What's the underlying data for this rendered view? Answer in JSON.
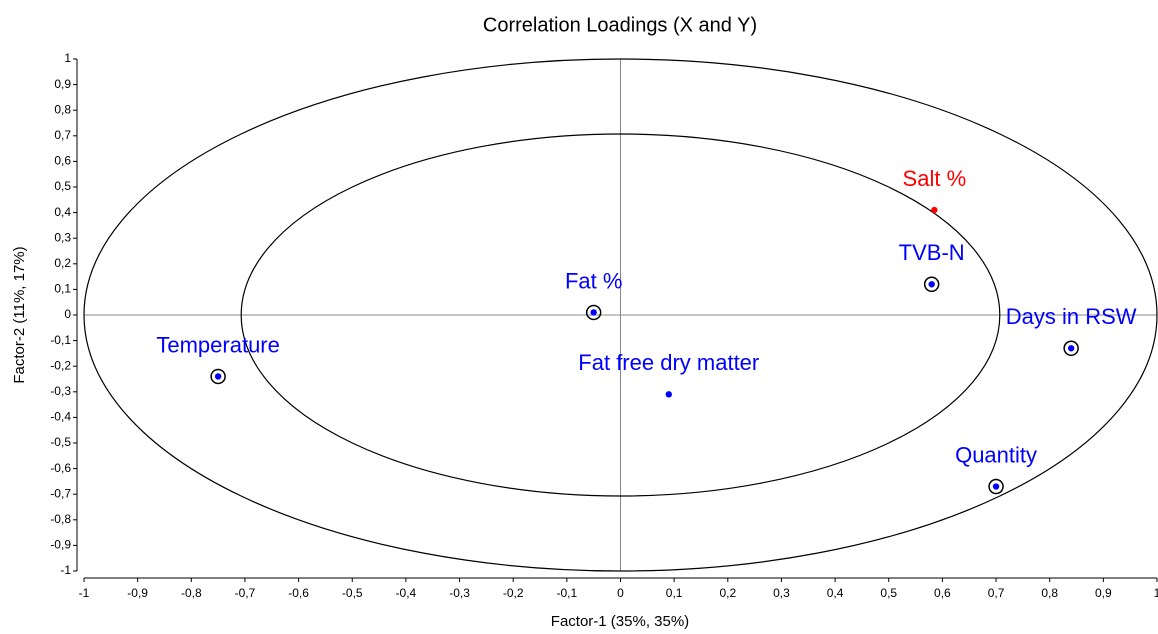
{
  "chart_data": {
    "type": "scatter",
    "title": "Correlation Loadings (X and Y)",
    "x_label": "Factor-1 (35%, 35%)",
    "y_label": "Factor-2 (11%, 17%)",
    "xlim": [
      -1,
      1
    ],
    "ylim": [
      -1,
      1
    ],
    "xticks": [
      -1,
      {
        "value": -0.9,
        "label": "-0,9"
      },
      {
        "value": -0.8,
        "label": "-0,8"
      },
      {
        "value": -0.7,
        "label": "-0,7"
      },
      {
        "value": -0.6,
        "label": "-0,6"
      },
      {
        "value": -0.5,
        "label": "-0,5"
      },
      {
        "value": -0.4,
        "label": "-0,4"
      },
      {
        "value": -0.3,
        "label": "-0,3"
      },
      {
        "value": -0.2,
        "label": "-0,2"
      },
      {
        "value": -0.1,
        "label": "-0,1"
      },
      0,
      {
        "value": 0.1,
        "label": "0,1"
      },
      {
        "value": 0.2,
        "label": "0,2"
      },
      {
        "value": 0.3,
        "label": "0,3"
      },
      {
        "value": 0.4,
        "label": "0,4"
      },
      {
        "value": 0.5,
        "label": "0,5"
      },
      {
        "value": 0.6,
        "label": "0,6"
      },
      {
        "value": 0.7,
        "label": "0,7"
      },
      {
        "value": 0.8,
        "label": "0,8"
      },
      {
        "value": 0.9,
        "label": "0,9"
      },
      1
    ],
    "yticks": [
      -1,
      {
        "value": -0.9,
        "label": "-0,9"
      },
      {
        "value": -0.8,
        "label": "-0,8"
      },
      {
        "value": -0.7,
        "label": "-0,7"
      },
      {
        "value": -0.6,
        "label": "-0,6"
      },
      {
        "value": -0.5,
        "label": "-0,5"
      },
      {
        "value": -0.4,
        "label": "-0,4"
      },
      {
        "value": -0.3,
        "label": "-0,3"
      },
      {
        "value": -0.2,
        "label": "-0,2"
      },
      {
        "value": -0.1,
        "label": "-0,1"
      },
      0,
      {
        "value": 0.1,
        "label": "0,1"
      },
      {
        "value": 0.2,
        "label": "0,2"
      },
      {
        "value": 0.3,
        "label": "0,3"
      },
      {
        "value": 0.4,
        "label": "0,4"
      },
      {
        "value": 0.5,
        "label": "0,5"
      },
      {
        "value": 0.6,
        "label": "0,6"
      },
      {
        "value": 0.7,
        "label": "0,7"
      },
      {
        "value": 0.8,
        "label": "0,8"
      },
      {
        "value": 0.9,
        "label": "0,9"
      },
      1
    ],
    "circle_radii": [
      1,
      0.707
    ],
    "points": [
      {
        "label": "Temperature",
        "x": -0.75,
        "y": -0.24,
        "color": "#0000ff",
        "circled": true
      },
      {
        "label": "Fat %",
        "x": -0.05,
        "y": 0.01,
        "color": "#0000ff",
        "circled": true
      },
      {
        "label": "Fat free dry matter",
        "x": 0.09,
        "y": -0.31,
        "color": "#0000ff",
        "circled": false
      },
      {
        "label": "TVB-N",
        "x": 0.58,
        "y": 0.12,
        "color": "#0000ff",
        "circled": true
      },
      {
        "label": "Salt %",
        "x": 0.585,
        "y": 0.41,
        "color": "#ff0000",
        "circled": false
      },
      {
        "label": "Days in RSW",
        "x": 0.84,
        "y": -0.13,
        "color": "#0000ff",
        "circled": true
      },
      {
        "label": "Quantity",
        "x": 0.7,
        "y": -0.67,
        "color": "#0000ff",
        "circled": true
      }
    ]
  }
}
